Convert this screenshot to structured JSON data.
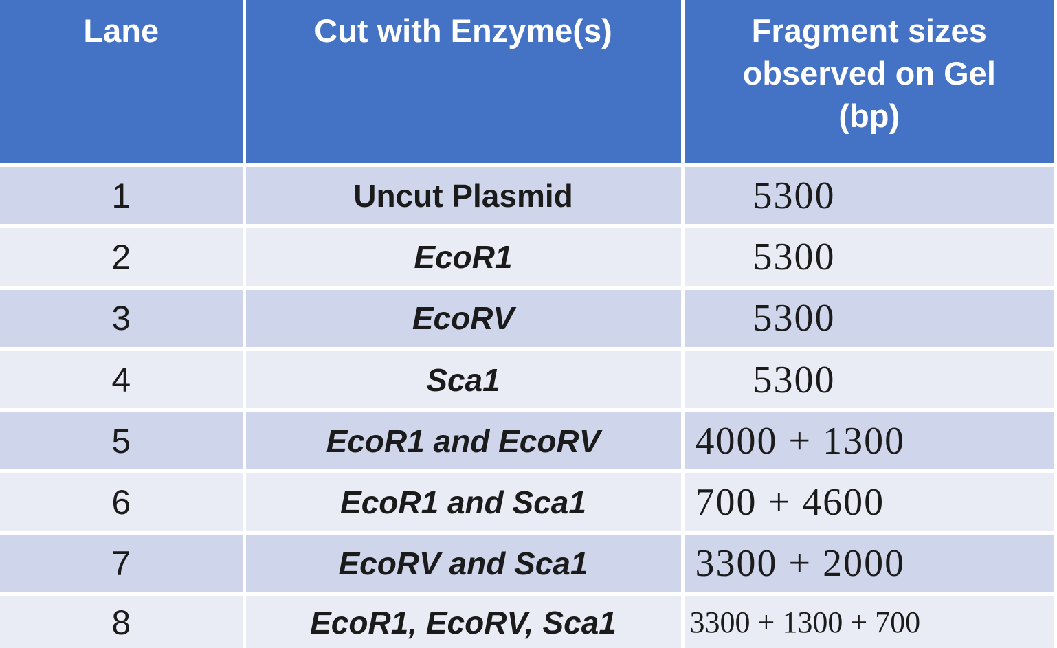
{
  "table": {
    "columns": [
      {
        "label": "Lane"
      },
      {
        "label": "Cut with Enzyme(s)"
      },
      {
        "label": "Fragment sizes\nobserved on Gel\n(bp)"
      }
    ],
    "rows": [
      {
        "lane": "1",
        "enzymes": "Uncut Plasmid",
        "fragments": "5300"
      },
      {
        "lane": "2",
        "enzymes": "EcoR1",
        "fragments": "5300"
      },
      {
        "lane": "3",
        "enzymes": "EcoRV",
        "fragments": "5300"
      },
      {
        "lane": "4",
        "enzymes": "Sca1",
        "fragments": "5300"
      },
      {
        "lane": "5",
        "enzymes": "EcoR1 and EcoRV",
        "fragments": "4000 + 1300"
      },
      {
        "lane": "6",
        "enzymes": "EcoR1 and Sca1",
        "fragments": "700 + 4600"
      },
      {
        "lane": "7",
        "enzymes": "EcoRV and Sca1",
        "fragments": "3300 + 2000"
      },
      {
        "lane": "8",
        "enzymes": "EcoR1, EcoRV, Sca1",
        "fragments": "3300 + 1300 + 700"
      }
    ]
  },
  "colors": {
    "header_bg": "#4472C4",
    "header_text": "#FFFFFF",
    "row_odd_bg": "#CFD5EA",
    "row_even_bg": "#E9EBF5",
    "grid_lines": "#FFFFFF",
    "body_text": "#1B1B1B"
  }
}
